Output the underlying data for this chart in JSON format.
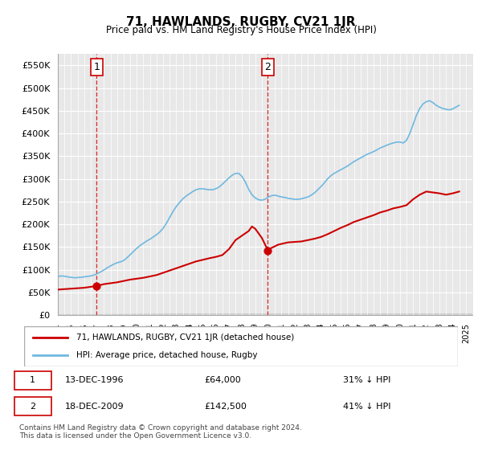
{
  "title": "71, HAWLANDS, RUGBY, CV21 1JR",
  "subtitle": "Price paid vs. HM Land Registry's House Price Index (HPI)",
  "ylim": [
    0,
    575000
  ],
  "yticks": [
    0,
    50000,
    100000,
    150000,
    200000,
    250000,
    300000,
    350000,
    400000,
    450000,
    500000,
    550000
  ],
  "xlim_start": 1994.0,
  "xlim_end": 2025.5,
  "hpi_color": "#6fb8e0",
  "price_color": "#cc0000",
  "annotation_color": "#cc0000",
  "background_plot": "#f0f0f0",
  "background_hatch": "#e8e8e8",
  "grid_color": "#ffffff",
  "marker1_x": 1996.96,
  "marker1_y": 64000,
  "marker1_label": "1",
  "marker2_x": 2009.96,
  "marker2_y": 142500,
  "marker2_label": "2",
  "legend_entry1": "71, HAWLANDS, RUGBY, CV21 1JR (detached house)",
  "legend_entry2": "HPI: Average price, detached house, Rugby",
  "table_row1": [
    "1",
    "13-DEC-1996",
    "£64,000",
    "31% ↓ HPI"
  ],
  "table_row2": [
    "2",
    "18-DEC-2009",
    "£142,500",
    "41% ↓ HPI"
  ],
  "footnote": "Contains HM Land Registry data © Crown copyright and database right 2024.\nThis data is licensed under the Open Government Licence v3.0.",
  "hpi_data": {
    "years": [
      1994.0,
      1994.25,
      1994.5,
      1994.75,
      1995.0,
      1995.25,
      1995.5,
      1995.75,
      1996.0,
      1996.25,
      1996.5,
      1996.75,
      1997.0,
      1997.25,
      1997.5,
      1997.75,
      1998.0,
      1998.25,
      1998.5,
      1998.75,
      1999.0,
      1999.25,
      1999.5,
      1999.75,
      2000.0,
      2000.25,
      2000.5,
      2000.75,
      2001.0,
      2001.25,
      2001.5,
      2001.75,
      2002.0,
      2002.25,
      2002.5,
      2002.75,
      2003.0,
      2003.25,
      2003.5,
      2003.75,
      2004.0,
      2004.25,
      2004.5,
      2004.75,
      2005.0,
      2005.25,
      2005.5,
      2005.75,
      2006.0,
      2006.25,
      2006.5,
      2006.75,
      2007.0,
      2007.25,
      2007.5,
      2007.75,
      2008.0,
      2008.25,
      2008.5,
      2008.75,
      2009.0,
      2009.25,
      2009.5,
      2009.75,
      2010.0,
      2010.25,
      2010.5,
      2010.75,
      2011.0,
      2011.25,
      2011.5,
      2011.75,
      2012.0,
      2012.25,
      2012.5,
      2012.75,
      2013.0,
      2013.25,
      2013.5,
      2013.75,
      2014.0,
      2014.25,
      2014.5,
      2014.75,
      2015.0,
      2015.25,
      2015.5,
      2015.75,
      2016.0,
      2016.25,
      2016.5,
      2016.75,
      2017.0,
      2017.25,
      2017.5,
      2017.75,
      2018.0,
      2018.25,
      2018.5,
      2018.75,
      2019.0,
      2019.25,
      2019.5,
      2019.75,
      2020.0,
      2020.25,
      2020.5,
      2020.75,
      2021.0,
      2021.25,
      2021.5,
      2021.75,
      2022.0,
      2022.25,
      2022.5,
      2022.75,
      2023.0,
      2023.25,
      2023.5,
      2023.75,
      2024.0,
      2024.25,
      2024.5
    ],
    "values": [
      85000,
      86000,
      85500,
      84000,
      83000,
      82000,
      82500,
      83000,
      84000,
      85000,
      86000,
      88000,
      91000,
      95000,
      99000,
      104000,
      108000,
      112000,
      115000,
      117000,
      120000,
      126000,
      133000,
      140000,
      147000,
      153000,
      158000,
      163000,
      167000,
      172000,
      177000,
      183000,
      191000,
      202000,
      215000,
      228000,
      239000,
      248000,
      256000,
      262000,
      267000,
      272000,
      276000,
      278000,
      278000,
      277000,
      276000,
      276000,
      278000,
      282000,
      288000,
      295000,
      302000,
      308000,
      312000,
      312000,
      305000,
      293000,
      277000,
      265000,
      258000,
      254000,
      253000,
      255000,
      260000,
      263000,
      264000,
      262000,
      260000,
      259000,
      257000,
      256000,
      255000,
      255000,
      256000,
      258000,
      260000,
      264000,
      269000,
      276000,
      283000,
      291000,
      300000,
      307000,
      312000,
      316000,
      320000,
      324000,
      328000,
      333000,
      338000,
      342000,
      346000,
      350000,
      354000,
      357000,
      360000,
      364000,
      368000,
      371000,
      374000,
      377000,
      379000,
      381000,
      381000,
      379000,
      385000,
      400000,
      420000,
      440000,
      455000,
      465000,
      470000,
      472000,
      468000,
      462000,
      458000,
      455000,
      453000,
      452000,
      454000,
      458000,
      462000
    ]
  },
  "price_data": {
    "years": [
      1994.0,
      1996.0,
      1996.96,
      1997.5,
      1998.5,
      1999.5,
      2000.5,
      2001.5,
      2002.5,
      2003.5,
      2004.5,
      2005.5,
      2006.0,
      2006.5,
      2007.0,
      2007.5,
      2008.0,
      2008.5,
      2008.75,
      2009.0,
      2009.5,
      2009.96,
      2010.25,
      2010.75,
      2011.5,
      2012.5,
      2013.0,
      2013.5,
      2014.0,
      2014.5,
      2015.0,
      2015.5,
      2016.0,
      2016.5,
      2017.0,
      2017.5,
      2018.0,
      2018.5,
      2019.0,
      2019.5,
      2020.0,
      2020.5,
      2021.0,
      2021.5,
      2022.0,
      2022.5,
      2023.0,
      2023.5,
      2024.0,
      2024.5
    ],
    "values": [
      56000,
      60000,
      64000,
      68000,
      72000,
      78000,
      82000,
      88000,
      98000,
      108000,
      118000,
      125000,
      128000,
      132000,
      145000,
      165000,
      175000,
      185000,
      195000,
      190000,
      170000,
      142500,
      148000,
      155000,
      160000,
      162000,
      165000,
      168000,
      172000,
      178000,
      185000,
      192000,
      198000,
      205000,
      210000,
      215000,
      220000,
      226000,
      230000,
      235000,
      238000,
      242000,
      255000,
      265000,
      272000,
      270000,
      268000,
      265000,
      268000,
      272000
    ]
  }
}
